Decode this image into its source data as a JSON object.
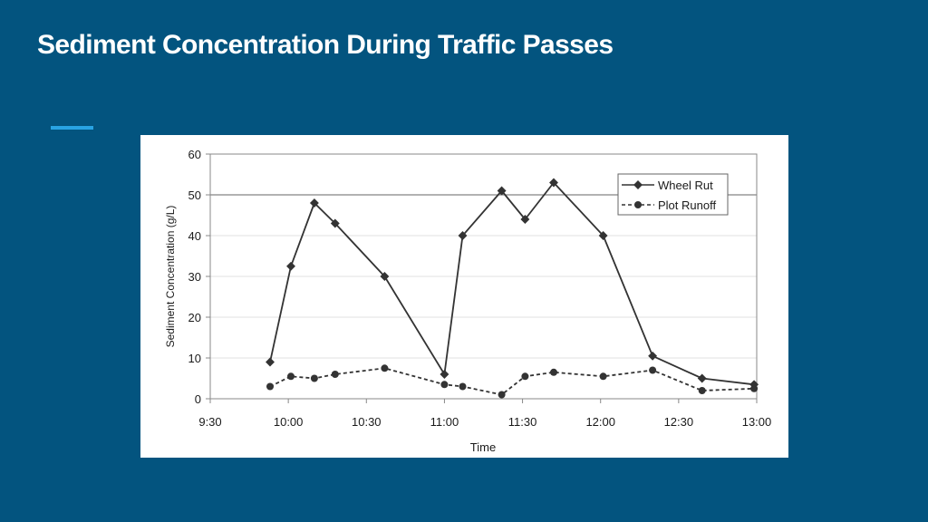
{
  "slide": {
    "title": "Sediment Concentration During Traffic Passes",
    "accent_color": "#29a3e3",
    "background_color": "#03547f"
  },
  "chart_data": {
    "type": "line",
    "title": "",
    "xlabel": "Time",
    "ylabel": "Sediment Concentration (g/L)",
    "xlim": [
      "9:30",
      "13:00"
    ],
    "ylim": [
      0,
      60
    ],
    "x_ticks": [
      "9:30",
      "10:00",
      "10:30",
      "11:00",
      "11:30",
      "12:00",
      "12:30",
      "13:00"
    ],
    "y_ticks": [
      0,
      10,
      20,
      30,
      40,
      50,
      60
    ],
    "grid": "horizontal",
    "legend_position": "top-right",
    "series": [
      {
        "name": "Wheel Rut",
        "marker": "diamond",
        "line_style": "solid",
        "color": "#333333",
        "x": [
          "9:53",
          "10:01",
          "10:10",
          "10:18",
          "10:37",
          "11:00",
          "11:07",
          "11:22",
          "11:31",
          "11:42",
          "12:01",
          "12:20",
          "12:39",
          "12:59"
        ],
        "values": [
          9,
          32.5,
          48,
          43,
          30,
          6,
          40,
          51,
          44,
          53,
          40,
          10.5,
          5,
          3.5
        ]
      },
      {
        "name": "Plot Runoff",
        "marker": "circle",
        "line_style": "dashed",
        "color": "#333333",
        "x": [
          "9:53",
          "10:01",
          "10:10",
          "10:18",
          "10:37",
          "11:00",
          "11:07",
          "11:22",
          "11:31",
          "11:42",
          "12:01",
          "12:20",
          "12:39",
          "12:59"
        ],
        "values": [
          3,
          5.5,
          5,
          6,
          7.5,
          3.5,
          3,
          1,
          5.5,
          6.5,
          5.5,
          7,
          2,
          2.5
        ]
      }
    ]
  }
}
